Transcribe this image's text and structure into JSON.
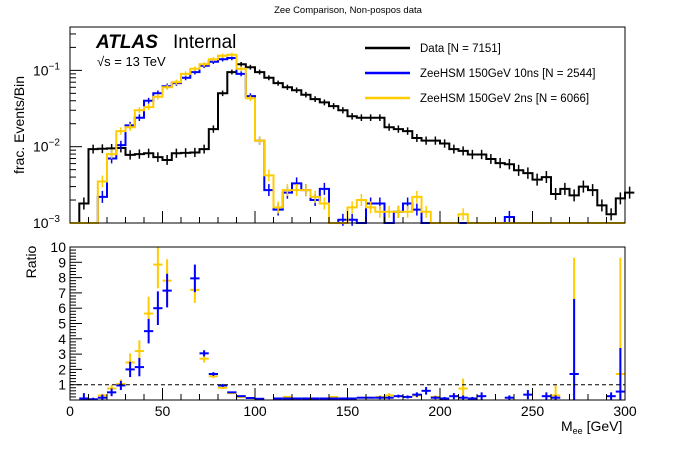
{
  "chart_data": [
    {
      "type": "line",
      "subtype": "step-histogram",
      "title": "Zee Comparison, Non-pospos data",
      "ylabel": "frac. Events/Bin",
      "xlabel": "",
      "yscale": "log",
      "ylim": [
        0.001,
        0.37
      ],
      "xlim": [
        0,
        300
      ],
      "bin_width": 5,
      "ytick_labels": [
        "10^{-3}",
        "10^{-2}",
        "10^{-1}"
      ],
      "ytick_values": [
        0.001,
        0.01,
        0.1
      ],
      "atlas_label": "ATLAS",
      "atlas_sublabel": "Internal",
      "energy_label": "√s = 13 TeV",
      "legend_position": "top-right",
      "series": [
        {
          "name": "Data [N = 7151]",
          "color": "#000000",
          "values": [
            0,
            0.0018,
            0.0093,
            0.0094,
            0.0095,
            0.0096,
            0.0078,
            0.008,
            0.0082,
            0.0073,
            0.0067,
            0.0082,
            0.0083,
            0.0084,
            0.0093,
            0.017,
            0.05,
            0.095,
            0.12,
            0.11,
            0.095,
            0.08,
            0.068,
            0.06,
            0.055,
            0.048,
            0.042,
            0.038,
            0.034,
            0.03,
            0.025,
            0.024,
            0.024,
            0.024,
            0.018,
            0.017,
            0.016,
            0.013,
            0.012,
            0.012,
            0.011,
            0.0093,
            0.0088,
            0.0079,
            0.0079,
            0.0069,
            0.0061,
            0.0059,
            0.0049,
            0.0045,
            0.0037,
            0.004,
            0.0024,
            0.0028,
            0.0023,
            0.003,
            0.0027,
            0.0017,
            0.0013,
            0.0021,
            0.0025
          ]
        },
        {
          "name": "ZeeHSM 150GeV 10ns [N = 2544]",
          "color": "#0000ff",
          "values": [
            0,
            0,
            0,
            0.0022,
            0.007,
            0.0105,
            0.019,
            0.024,
            0.04,
            0.05,
            0.062,
            0.068,
            0.08,
            0.095,
            0.115,
            0.13,
            0.14,
            0.145,
            0.09,
            0.046,
            0.012,
            0.0027,
            0.0015,
            0.0025,
            0.0033,
            0.0027,
            0.002,
            0.0028,
            0.001,
            0.0011,
            0.0011,
            0.001,
            0.0018,
            0.0018,
            0.001,
            0.0014,
            0.0018,
            0.0015,
            0.001,
            0.001,
            0.001,
            0.001,
            0.001,
            0.001,
            0.001,
            0.001,
            0.001,
            0.0012,
            0.001,
            0.001,
            0.001,
            0.001,
            0.001,
            0.001,
            0.001,
            0.001,
            0.001,
            0.001,
            0.001,
            0.001
          ]
        },
        {
          "name": "ZeeHSM 150GeV 2ns [N = 6066]",
          "color": "#ffcc00",
          "values": [
            0,
            0,
            0,
            0.0035,
            0.008,
            0.016,
            0.018,
            0.03,
            0.033,
            0.045,
            0.06,
            0.07,
            0.09,
            0.105,
            0.12,
            0.14,
            0.155,
            0.16,
            0.105,
            0.043,
            0.012,
            0.0042,
            0.0016,
            0.0027,
            0.0027,
            0.0027,
            0.0022,
            0.0018,
            0.001,
            0.001,
            0.0016,
            0.002,
            0.0016,
            0.0014,
            0.0014,
            0.0014,
            0.0014,
            0.0022,
            0.0014,
            0.001,
            0.001,
            0.001,
            0.0013,
            0.001,
            0.001,
            0.001,
            0.001,
            0.001,
            0.001,
            0.001,
            0.001,
            0.001,
            0.001,
            0.001,
            0.001,
            0.001,
            0.001,
            0.001,
            0.001,
            0.001
          ]
        }
      ]
    },
    {
      "type": "scatter",
      "subtype": "ratio-errorbars",
      "ylabel": "Ratio",
      "xlabel": "M_{ee} [GeV]",
      "xlabel_main": "M",
      "xlabel_sub": "ee",
      "xlabel_unit": " [GeV]",
      "xlim": [
        0,
        300
      ],
      "ylim": [
        0,
        10
      ],
      "reference_line": 1,
      "xtick_labels": [
        "0",
        "50",
        "100",
        "150",
        "200",
        "250",
        "300"
      ],
      "xtick_values": [
        0,
        50,
        100,
        150,
        200,
        250,
        300
      ],
      "ytick_labels": [
        "1",
        "2",
        "3",
        "4",
        "5",
        "6",
        "7",
        "8",
        "9",
        "10"
      ],
      "ytick_values": [
        1,
        2,
        3,
        4,
        5,
        6,
        7,
        8,
        9,
        10
      ],
      "series": [
        {
          "name": "ZeeHSM 150GeV 10ns / Data",
          "color": "#0000ff",
          "points": [
            [
              7.5,
              0.1,
              0.35
            ],
            [
              12.5,
              0.05,
              0.1
            ],
            [
              17.5,
              0.15,
              0.2
            ],
            [
              22.5,
              0.5,
              0.25
            ],
            [
              27.5,
              0.95,
              0.3
            ],
            [
              32.5,
              2.0,
              0.5
            ],
            [
              37.5,
              2.15,
              0.6
            ],
            [
              42.5,
              4.5,
              0.8
            ],
            [
              47.5,
              6.0,
              1.1
            ],
            [
              52.5,
              7.15,
              1.1
            ],
            [
              67.5,
              7.95,
              0.9
            ],
            [
              72.5,
              3.05,
              0.2
            ],
            [
              77.5,
              1.7,
              0.12
            ],
            [
              82.5,
              0.95,
              0.1
            ],
            [
              87.5,
              0.5,
              0.05
            ],
            [
              92.5,
              0.25,
              0.05
            ],
            [
              97.5,
              0.13,
              0.03
            ],
            [
              102.5,
              0.08,
              0.02
            ],
            [
              112.5,
              0.1,
              0.02
            ],
            [
              117.5,
              0.1,
              0.03
            ],
            [
              122.5,
              0.1,
              0.03
            ],
            [
              127.5,
              0.1,
              0.03
            ],
            [
              132.5,
              0.1,
              0.04
            ],
            [
              137.5,
              0.1,
              0.04
            ],
            [
              142.5,
              0.1,
              0.04
            ],
            [
              147.5,
              0.1,
              0.04
            ],
            [
              152.5,
              0.1,
              0.04
            ],
            [
              157.5,
              0.15,
              0.05
            ],
            [
              162.5,
              0.15,
              0.05
            ],
            [
              167.5,
              0.15,
              0.1
            ],
            [
              172.5,
              0.15,
              0.1
            ],
            [
              177.5,
              0.25,
              0.1
            ],
            [
              182.5,
              0.2,
              0.1
            ],
            [
              187.5,
              0.35,
              0.15
            ],
            [
              192.5,
              0.6,
              0.25
            ],
            [
              197.5,
              0.15,
              0.1
            ],
            [
              202.5,
              0.1,
              0.1
            ],
            [
              207.5,
              0.25,
              0.2
            ],
            [
              212.5,
              0.15,
              0.15
            ],
            [
              217.5,
              0.1,
              0.1
            ],
            [
              222.5,
              0.25,
              0.25
            ],
            [
              237.5,
              0.15,
              0.15
            ],
            [
              247.5,
              0.35,
              0.3
            ],
            [
              257.5,
              0.25,
              0.25
            ],
            [
              262.5,
              0.15,
              0.15
            ],
            [
              272.5,
              1.7,
              4.9
            ],
            [
              292.5,
              0.25,
              0.25
            ],
            [
              297.5,
              0.55,
              2.85
            ]
          ]
        },
        {
          "name": "ZeeHSM 150GeV 2ns / Data",
          "color": "#ffcc00",
          "points": [
            [
              17.5,
              0.3,
              0.1
            ],
            [
              22.5,
              0.75,
              0.25
            ],
            [
              27.5,
              1.05,
              0.3
            ],
            [
              32.5,
              2.45,
              0.6
            ],
            [
              37.5,
              3.2,
              0.7
            ],
            [
              42.5,
              5.65,
              1.1
            ],
            [
              47.5,
              8.85,
              1.55
            ],
            [
              52.5,
              7.8,
              1.4
            ],
            [
              67.5,
              7.2,
              0.85
            ],
            [
              72.5,
              2.7,
              0.25
            ],
            [
              77.5,
              1.55,
              0.12
            ],
            [
              82.5,
              0.8,
              0.1
            ],
            [
              87.5,
              0.45,
              0.05
            ],
            [
              92.5,
              0.2,
              0.04
            ],
            [
              117.5,
              0.2,
              0.05
            ],
            [
              142.5,
              0.2,
              0.05
            ],
            [
              167.5,
              0.2,
              0.1
            ],
            [
              172.5,
              0.3,
              0.15
            ],
            [
              187.5,
              0.3,
              0.15
            ],
            [
              197.5,
              0.2,
              0.1
            ],
            [
              212.5,
              0.75,
              0.65
            ],
            [
              262.5,
              0.3,
              0.65
            ],
            [
              272.5,
              1.7,
              7.6
            ],
            [
              297.5,
              1.7,
              7.6
            ]
          ]
        }
      ]
    }
  ]
}
